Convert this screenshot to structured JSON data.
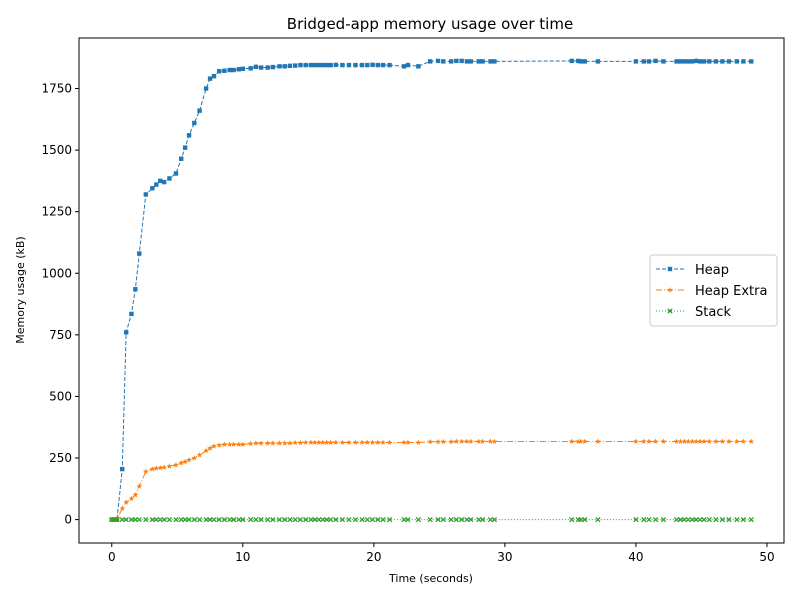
{
  "chart_data": {
    "type": "line",
    "title": "Bridged-app memory usage over time",
    "xlabel": "Time (seconds)",
    "ylabel": "Memory usage (kB)",
    "xlim": [
      -2.5,
      51.3
    ],
    "ylim": [
      -95,
      1955
    ],
    "xticks": [
      0,
      10,
      20,
      30,
      40,
      50
    ],
    "yticks": [
      0,
      250,
      500,
      750,
      1000,
      1250,
      1500,
      1750
    ],
    "grid": false,
    "legend_position": "center-right",
    "series": [
      {
        "name": "Heap",
        "color": "#1f77b4",
        "line_style": "dashed",
        "marker": "square",
        "x": [
          0,
          0.2,
          0.4,
          0.8,
          1.1,
          1.5,
          1.8,
          2.1,
          2.6,
          3.1,
          3.4,
          3.7,
          4.0,
          4.4,
          4.9,
          5.3,
          5.6,
          5.9,
          6.3,
          6.7,
          7.2,
          7.5,
          7.8,
          8.2,
          8.6,
          9.0,
          9.3,
          9.7,
          10.0,
          10.6,
          11.0,
          11.4,
          11.9,
          12.3,
          12.8,
          13.2,
          13.6,
          14.0,
          14.4,
          14.8,
          15.2,
          15.5,
          15.8,
          16.1,
          16.4,
          16.7,
          17.1,
          17.6,
          18.1,
          18.6,
          19.1,
          19.5,
          19.9,
          20.3,
          20.7,
          21.2,
          22.3,
          22.6,
          23.4,
          24.3,
          24.9,
          25.3,
          25.9,
          26.3,
          26.7,
          27.1,
          27.4,
          28.0,
          28.3,
          28.9,
          29.2,
          35.1,
          35.6,
          35.8,
          36.1,
          37.1,
          40.0,
          40.6,
          41.0,
          41.5,
          42.1,
          43.1,
          43.4,
          43.7,
          44.0,
          44.3,
          44.6,
          44.9,
          45.2,
          45.6,
          46.1,
          46.6,
          47.1,
          47.7,
          48.2,
          48.8
        ],
        "y": [
          0,
          0,
          0,
          205,
          760,
          835,
          935,
          1080,
          1320,
          1345,
          1360,
          1375,
          1370,
          1385,
          1405,
          1465,
          1510,
          1560,
          1610,
          1660,
          1750,
          1790,
          1800,
          1820,
          1822,
          1825,
          1825,
          1828,
          1830,
          1832,
          1838,
          1835,
          1835,
          1837,
          1840,
          1840,
          1842,
          1843,
          1845,
          1845,
          1845,
          1845,
          1845,
          1845,
          1845,
          1845,
          1846,
          1845,
          1845,
          1845,
          1845,
          1845,
          1846,
          1845,
          1845,
          1845,
          1840,
          1845,
          1840,
          1860,
          1862,
          1860,
          1860,
          1862,
          1862,
          1860,
          1860,
          1860,
          1860,
          1860,
          1860,
          1862,
          1862,
          1860,
          1860,
          1860,
          1860,
          1860,
          1860,
          1862,
          1860,
          1860,
          1860,
          1860,
          1860,
          1860,
          1862,
          1860,
          1860,
          1860,
          1860,
          1860,
          1860,
          1860,
          1860,
          1860
        ]
      },
      {
        "name": "Heap Extra",
        "color": "#ff7f0e",
        "line_style": "dashdot",
        "marker": "star",
        "x": [
          0,
          0.2,
          0.4,
          0.8,
          1.1,
          1.5,
          1.8,
          2.1,
          2.6,
          3.1,
          3.4,
          3.7,
          4.0,
          4.4,
          4.9,
          5.3,
          5.6,
          5.9,
          6.3,
          6.7,
          7.2,
          7.5,
          7.8,
          8.2,
          8.6,
          9.0,
          9.3,
          9.7,
          10.0,
          10.6,
          11.0,
          11.4,
          11.9,
          12.3,
          12.8,
          13.2,
          13.6,
          14.0,
          14.4,
          14.8,
          15.2,
          15.5,
          15.8,
          16.1,
          16.4,
          16.7,
          17.1,
          17.6,
          18.1,
          18.6,
          19.1,
          19.5,
          19.9,
          20.3,
          20.7,
          21.2,
          22.3,
          22.6,
          23.4,
          24.3,
          24.9,
          25.3,
          25.9,
          26.3,
          26.7,
          27.1,
          27.4,
          28.0,
          28.3,
          28.9,
          29.2,
          35.1,
          35.6,
          35.8,
          36.1,
          37.1,
          40.0,
          40.6,
          41.0,
          41.5,
          42.1,
          43.1,
          43.4,
          43.7,
          44.0,
          44.3,
          44.6,
          44.9,
          45.2,
          45.6,
          46.1,
          46.6,
          47.1,
          47.7,
          48.2,
          48.8
        ],
        "y": [
          0,
          0,
          0,
          45,
          70,
          85,
          100,
          135,
          195,
          205,
          208,
          210,
          212,
          217,
          222,
          230,
          235,
          242,
          250,
          262,
          280,
          290,
          298,
          302,
          305,
          305,
          305,
          305,
          305,
          308,
          310,
          310,
          310,
          310,
          310,
          310,
          310,
          312,
          312,
          313,
          313,
          313,
          313,
          313,
          313,
          313,
          313,
          313,
          313,
          313,
          313,
          313,
          313,
          313,
          313,
          313,
          313,
          313,
          313,
          316,
          316,
          316,
          316,
          317,
          317,
          317,
          317,
          317,
          317,
          317,
          317,
          317,
          317,
          317,
          317,
          317,
          317,
          317,
          317,
          317,
          317,
          317,
          317,
          317,
          317,
          317,
          317,
          317,
          317,
          317,
          317,
          317,
          317,
          317,
          317,
          317
        ]
      },
      {
        "name": "Stack",
        "color": "#2ca02c",
        "line_style": "dotted",
        "marker": "x",
        "x": [
          0,
          0.2,
          0.4,
          0.8,
          1.1,
          1.5,
          1.8,
          2.1,
          2.6,
          3.1,
          3.4,
          3.7,
          4.0,
          4.4,
          4.9,
          5.3,
          5.6,
          5.9,
          6.3,
          6.7,
          7.2,
          7.5,
          7.8,
          8.2,
          8.6,
          9.0,
          9.3,
          9.7,
          10.0,
          10.6,
          11.0,
          11.4,
          11.9,
          12.3,
          12.8,
          13.2,
          13.6,
          14.0,
          14.4,
          14.8,
          15.2,
          15.5,
          15.8,
          16.1,
          16.4,
          16.7,
          17.1,
          17.6,
          18.1,
          18.6,
          19.1,
          19.5,
          19.9,
          20.3,
          20.7,
          21.2,
          22.3,
          22.6,
          23.4,
          24.3,
          24.9,
          25.3,
          25.9,
          26.3,
          26.7,
          27.1,
          27.4,
          28.0,
          28.3,
          28.9,
          29.2,
          35.1,
          35.6,
          35.8,
          36.1,
          37.1,
          40.0,
          40.6,
          41.0,
          41.5,
          42.1,
          43.1,
          43.4,
          43.7,
          44.0,
          44.3,
          44.6,
          44.9,
          45.2,
          45.6,
          46.1,
          46.6,
          47.1,
          47.7,
          48.2,
          48.8
        ],
        "y": [
          0,
          0,
          0,
          0,
          0,
          0,
          0,
          0,
          0,
          0,
          0,
          0,
          0,
          0,
          0,
          0,
          0,
          0,
          0,
          0,
          0,
          0,
          0,
          0,
          0,
          0,
          0,
          0,
          0,
          0,
          0,
          0,
          0,
          0,
          0,
          0,
          0,
          0,
          0,
          0,
          0,
          0,
          0,
          0,
          0,
          0,
          0,
          0,
          0,
          0,
          0,
          0,
          0,
          0,
          0,
          0,
          0,
          0,
          0,
          0,
          0,
          0,
          0,
          0,
          0,
          0,
          0,
          0,
          0,
          0,
          0,
          0,
          0,
          0,
          0,
          0,
          0,
          0,
          0,
          0,
          0,
          0,
          0,
          0,
          0,
          0,
          0,
          0,
          0,
          0,
          0,
          0,
          0,
          0,
          0,
          0
        ]
      }
    ]
  }
}
